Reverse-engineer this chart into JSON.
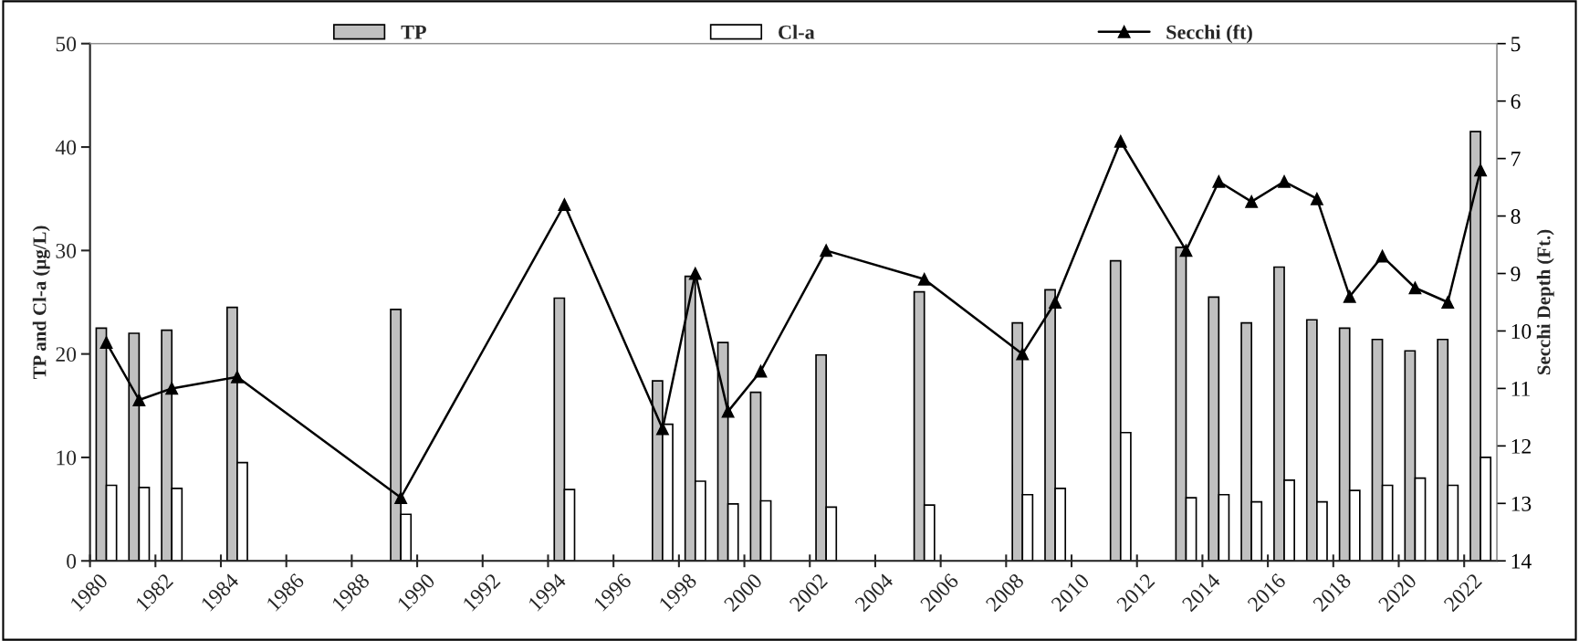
{
  "chart_data": {
    "type": "bar",
    "x": [
      1980.5,
      1981.5,
      1982.5,
      1984.5,
      1989.5,
      1994.5,
      1997.5,
      1998.5,
      1999.5,
      2000.5,
      2002.5,
      2005.5,
      2008.5,
      2009.5,
      2011.5,
      2013.5,
      2014.5,
      2015.5,
      2016.5,
      2017.5,
      2018.5,
      2019.5,
      2020.5,
      2021.5,
      2022.5
    ],
    "series": [
      {
        "name": "TP",
        "color": "#c0c0c0",
        "values": [
          22.5,
          22.0,
          22.3,
          24.5,
          24.3,
          25.4,
          17.4,
          27.5,
          21.1,
          16.3,
          19.9,
          26.0,
          23.0,
          26.2,
          29.0,
          30.3,
          25.5,
          23.0,
          28.4,
          23.3,
          22.5,
          21.4,
          20.3,
          21.4,
          41.5
        ]
      },
      {
        "name": "Cl-a",
        "color": "#ffffff",
        "values": [
          7.3,
          7.1,
          7.0,
          9.5,
          4.5,
          6.9,
          13.2,
          7.7,
          5.5,
          5.8,
          5.2,
          5.4,
          6.4,
          7.0,
          12.4,
          6.1,
          6.4,
          5.7,
          7.8,
          5.7,
          6.8,
          7.3,
          8.0,
          7.3,
          10.0
        ]
      },
      {
        "name": "Secchi (ft)",
        "type": "line",
        "axis": "y2",
        "color": "#000000",
        "marker": "triangle",
        "line_style": "solid",
        "values": [
          10.2,
          11.2,
          11.0,
          10.8,
          12.9,
          7.8,
          11.7,
          9.0,
          11.4,
          10.7,
          8.6,
          9.1,
          10.4,
          9.5,
          6.7,
          8.6,
          7.4,
          7.75,
          7.4,
          7.7,
          9.4,
          8.7,
          9.25,
          9.5,
          7.2
        ]
      }
    ],
    "ylabel": "TP and Cl-a (µg/L)",
    "y2label": "Secchi Depth (Ft.)",
    "xlim": [
      1980,
      2023
    ],
    "xticks": [
      1980,
      1982,
      1984,
      1986,
      1988,
      1990,
      1992,
      1994,
      1996,
      1998,
      2000,
      2002,
      2004,
      2006,
      2008,
      2010,
      2012,
      2014,
      2016,
      2018,
      2020,
      2022
    ],
    "ylim": [
      0,
      50
    ],
    "yticks": [
      0,
      10,
      20,
      30,
      40,
      50
    ],
    "y2lim": [
      14,
      5
    ],
    "y2ticks": [
      5,
      6,
      7,
      8,
      9,
      10,
      11,
      12,
      13,
      14
    ],
    "legend": "top",
    "grid": false
  }
}
